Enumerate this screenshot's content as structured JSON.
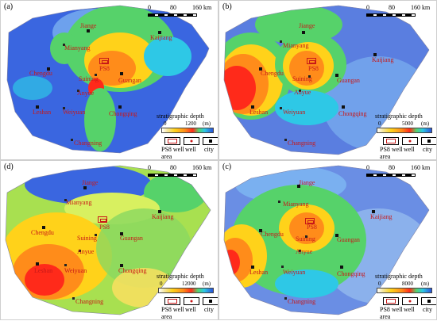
{
  "scalebar": {
    "t0": "0",
    "t1": "80",
    "t2": "160 km"
  },
  "legend": {
    "title": "stratigraphic depth",
    "ps8_label": "PS8 well area",
    "ps8_label_line1": "PS8 well",
    "ps8_label_line2": "area",
    "well_label": "well",
    "city_label": "city"
  },
  "panels": [
    {
      "label": "(a)",
      "depth_min": "0",
      "depth_max": "1200",
      "unit": "(m)",
      "cities": {
        "jiange": "Jiange",
        "mianyang": "Mianyang",
        "kaijiang": "Kaijiang",
        "ps8": "PS8",
        "chengdu": "Chengdu",
        "suining": "Suining",
        "guangan": "Guangan",
        "anyue": "Anyue",
        "leshan": "Leshan",
        "weiyuan": "Weiyuan",
        "chongqing": "Chongqing",
        "changning": "Changning"
      }
    },
    {
      "label": "(b)",
      "depth_min": "0",
      "depth_max": "5000",
      "unit": "(m)",
      "cities": {
        "jiange": "Jiange",
        "mianyang": "Mianyang",
        "kaijiang": "Kaijiang",
        "ps8": "PS8",
        "chengdu": "Chengdu",
        "suining": "Suining",
        "guangan": "Guangan",
        "anyue": "Anyue",
        "leshan": "Leshan",
        "weiyuan": "Weiyuan",
        "chongqing": "Chongqing",
        "changning": "Changning"
      }
    },
    {
      "label": "(d)",
      "depth_min": "0",
      "depth_max": "12000",
      "unit": "(m)",
      "cities": {
        "jiange": "Jiange",
        "mianyang": "Mianyang",
        "kaijiang": "Kaijiang",
        "ps8": "PS8",
        "chengdu": "Chengdu",
        "suining": "Suining",
        "guangan": "Guangan",
        "anyue": "Anyue",
        "leshan": "Leshan",
        "weiyuan": "Weiyuan",
        "chongqing": "Chongqing",
        "changning": "Changning"
      }
    },
    {
      "label": "(c)",
      "depth_min": "0",
      "depth_max": "8000",
      "unit": "(m)",
      "cities": {
        "jiange": "Jiange",
        "mianyang": "Mianyang",
        "kaijiang": "Kaijiang",
        "ps8": "PS8",
        "chengdu": "Chengdu",
        "suining": "Suining",
        "guangan": "Guangan",
        "anyue": "Anyue",
        "leshan": "Leshan",
        "weiyuan": "Weiyuan",
        "chongqing": "Chongqing",
        "changning": "Changning"
      }
    }
  ],
  "colors": {
    "label_red": "#c81818",
    "deep_blue": "#2a52d8",
    "cyan": "#2ec8e6",
    "green": "#56d26a",
    "yellow": "#ffd21a",
    "orange": "#ff8c1a",
    "red": "#ff2a1a"
  }
}
